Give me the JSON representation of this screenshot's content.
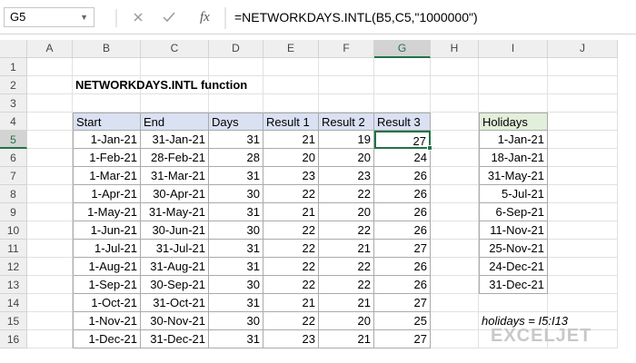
{
  "name_box": "G5",
  "fx_label": "fx",
  "formula": "=NETWORKDAYS.INTL(B5,C5,\"1000000\")",
  "columns": [
    "A",
    "B",
    "C",
    "D",
    "E",
    "F",
    "G",
    "H",
    "I",
    "J"
  ],
  "rows": [
    1,
    2,
    3,
    4,
    5,
    6,
    7,
    8,
    9,
    10,
    11,
    12,
    13,
    14,
    15,
    16
  ],
  "title": "NETWORKDAYS.INTL function",
  "table": {
    "header": [
      "Start",
      "End",
      "Days",
      "Result 1",
      "Result 2",
      "Result 3"
    ],
    "rows": [
      [
        "1-Jan-21",
        "31-Jan-21",
        31,
        21,
        19,
        27
      ],
      [
        "1-Feb-21",
        "28-Feb-21",
        28,
        20,
        20,
        24
      ],
      [
        "1-Mar-21",
        "31-Mar-21",
        31,
        23,
        23,
        26
      ],
      [
        "1-Apr-21",
        "30-Apr-21",
        30,
        22,
        22,
        26
      ],
      [
        "1-May-21",
        "31-May-21",
        31,
        21,
        20,
        26
      ],
      [
        "1-Jun-21",
        "30-Jun-21",
        30,
        22,
        22,
        26
      ],
      [
        "1-Jul-21",
        "31-Jul-21",
        31,
        22,
        21,
        27
      ],
      [
        "1-Aug-21",
        "31-Aug-21",
        31,
        22,
        22,
        26
      ],
      [
        "1-Sep-21",
        "30-Sep-21",
        30,
        22,
        22,
        26
      ],
      [
        "1-Oct-21",
        "31-Oct-21",
        31,
        21,
        21,
        27
      ],
      [
        "1-Nov-21",
        "30-Nov-21",
        30,
        22,
        20,
        25
      ],
      [
        "1-Dec-21",
        "31-Dec-21",
        31,
        23,
        21,
        27
      ]
    ]
  },
  "holidays": {
    "header": "Holidays",
    "rows": [
      "1-Jan-21",
      "18-Jan-21",
      "31-May-21",
      "5-Jul-21",
      "6-Sep-21",
      "11-Nov-21",
      "25-Nov-21",
      "24-Dec-21",
      "31-Dec-21"
    ]
  },
  "note": "holidays = I5:I13",
  "logo": "EXCELJET"
}
